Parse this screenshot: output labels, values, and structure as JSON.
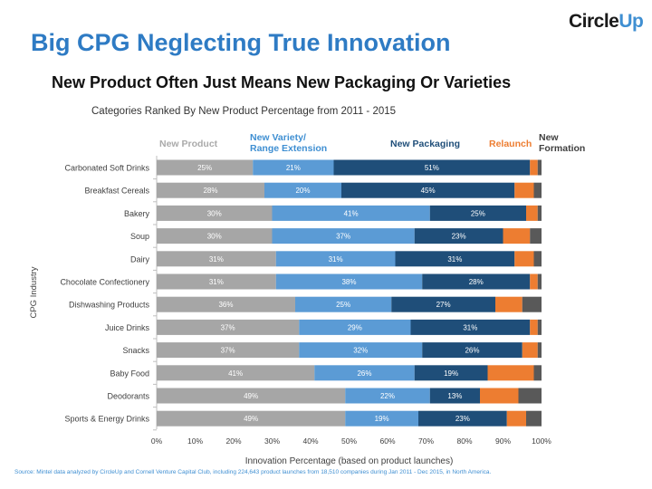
{
  "logo": {
    "part1": "Circle",
    "part2": "Up"
  },
  "header": {
    "title": "Big CPG Neglecting True Innovation",
    "subtitle": "New Product Often Just Means New Packaging Or Varieties",
    "subsubtitle": "Categories Ranked By New Product Percentage from 2011 - 2015"
  },
  "source": "Source: Mintel data analyzed by CircleUp and Cornell Venture Capital Club, including 224,643 product launches from 18,510 companies during Jan 2011 - Dec 2015, in North America.",
  "chart_data": {
    "type": "bar",
    "orientation": "horizontal",
    "stacked": true,
    "xlabel": "Innovation Percentage (based on product launches)",
    "ylabel": "CPG Industry",
    "xlim": [
      0,
      100
    ],
    "x_ticks": [
      "0%",
      "10%",
      "20%",
      "30%",
      "40%",
      "50%",
      "60%",
      "70%",
      "80%",
      "90%",
      "100%"
    ],
    "grid": false,
    "legend_position": "top",
    "categories": [
      "Carbonated Soft Drinks",
      "Breakfast Cereals",
      "Bakery",
      "Soup",
      "Dairy",
      "Chocolate Confectionery",
      "Dishwashing Products",
      "Juice Drinks",
      "Snacks",
      "Baby Food",
      "Deodorants",
      "Sports & Energy Drinks"
    ],
    "series": [
      {
        "name": "New Product",
        "color": "#a6a6a6",
        "label_color": "#aaaaaa",
        "values": [
          25,
          28,
          30,
          30,
          31,
          31,
          36,
          37,
          37,
          41,
          49,
          49
        ],
        "labels": [
          "25%",
          "28%",
          "30%",
          "30%",
          "31%",
          "31%",
          "36%",
          "37%",
          "37%",
          "41%",
          "49%",
          "49%"
        ]
      },
      {
        "name": "New Variety/\nRange Extension",
        "color": "#5b9bd5",
        "label_color": "#3f8fd2",
        "values": [
          21,
          20,
          41,
          37,
          31,
          38,
          25,
          29,
          32,
          26,
          22,
          19
        ],
        "labels": [
          "21%",
          "20%",
          "41%",
          "37%",
          "31%",
          "38%",
          "25%",
          "29%",
          "32%",
          "26%",
          "22%",
          "19%"
        ]
      },
      {
        "name": "New Packaging",
        "color": "#1f4e79",
        "label_color": "#1f4e79",
        "values": [
          51,
          45,
          25,
          23,
          31,
          28,
          27,
          31,
          26,
          19,
          13,
          23
        ],
        "labels": [
          "51%",
          "45%",
          "25%",
          "23%",
          "31%",
          "28%",
          "27%",
          "31%",
          "26%",
          "19%",
          "13%",
          "23%"
        ]
      },
      {
        "name": "Relaunch",
        "color": "#ed7d31",
        "label_color": "#ed7d31",
        "values": [
          2,
          5,
          3,
          7,
          5,
          2,
          7,
          2,
          4,
          12,
          10,
          5
        ],
        "labels": [
          "",
          "",
          "",
          "",
          "",
          "",
          "",
          "",
          "",
          "",
          "",
          ""
        ]
      },
      {
        "name": "New\nFormation",
        "color": "#595959",
        "label_color": "#404040",
        "values": [
          1,
          2,
          1,
          3,
          2,
          1,
          5,
          1,
          1,
          2,
          6,
          4
        ],
        "labels": [
          "",
          "",
          "",
          "",
          "",
          "",
          "",
          "",
          "",
          "",
          "",
          ""
        ]
      }
    ]
  }
}
